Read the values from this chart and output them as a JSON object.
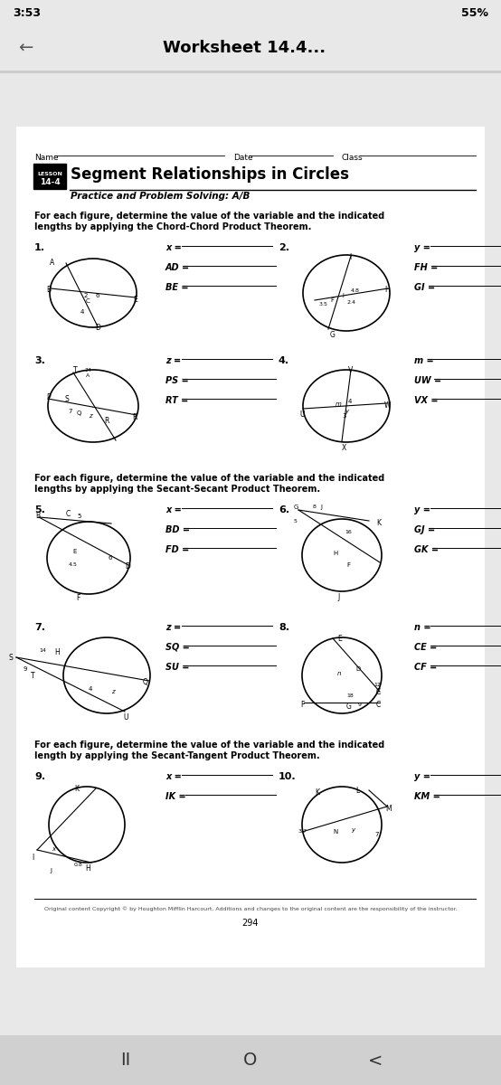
{
  "bg_color": "#e8e8e8",
  "page_bg": "#ffffff",
  "status_bar_text": "3:53",
  "status_bar_right": "55%",
  "nav_title": "Worksheet 14.4...",
  "name_label": "Name",
  "date_label": "Date",
  "class_label": "Class",
  "title": "Segment Relationships in Circles",
  "subtitle": "Practice and Problem Solving: A/B",
  "section1_text": "For each figure, determine the value of the variable and the indicated\nlengths by applying the Chord-Chord Product Theorem.",
  "section2_text": "For each figure, determine the value of the variable and the indicated\nlengths by applying the Secant-Secant Product Theorem.",
  "section3_text": "For each figure, determine the value of the variable and the indicated\nlength by applying the Secant-Tangent Product Theorem.",
  "footer_text": "Original content Copyright © by Houghton Mifflin Harcourt. Additions and changes to the original content are the responsibility of the instructor.",
  "footer_page": "294"
}
